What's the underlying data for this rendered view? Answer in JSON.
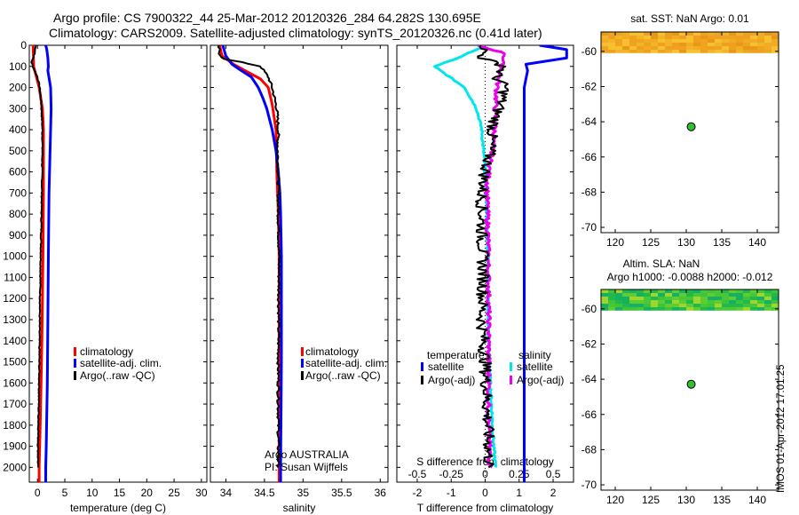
{
  "header": {
    "title_line1": "Argo profile: CS 7900322_44 25-Mar-2012 20120326_284 64.282S 130.695E",
    "title_line2": "Climatology: CARS2009. Satellite-adjusted climatology: synTS_20120326.nc (0.41d later)"
  },
  "colors": {
    "climatology": "#ff0000",
    "satellite": "#0000ff",
    "argo": "#000000",
    "satellite_s": "#00e6ee",
    "argo_s": "#ee00ee",
    "marker": "#2ec22e"
  },
  "chart_data": [
    {
      "id": "temperature",
      "type": "line",
      "xlabel": "temperature (deg C)",
      "xlim": [
        -1.5,
        31
      ],
      "xticks": [
        0,
        5,
        10,
        15,
        20,
        25,
        30
      ],
      "ylim": [
        2070,
        0
      ],
      "yticks": [
        0,
        100,
        200,
        300,
        400,
        500,
        600,
        700,
        800,
        900,
        1000,
        1100,
        1200,
        1300,
        1400,
        1500,
        1600,
        1700,
        1800,
        1900,
        2000
      ],
      "legend": [
        "climatology",
        "satellite-adj. clim.",
        "Argo(..raw -QC)"
      ],
      "series": [
        {
          "name": "climatology",
          "color": "#ff0000",
          "points": [
            [
              -0.8,
              0
            ],
            [
              -0.7,
              100
            ],
            [
              0.3,
              200
            ],
            [
              0.9,
              300
            ],
            [
              1.1,
              400
            ],
            [
              1.1,
              500
            ],
            [
              1.1,
              700
            ],
            [
              1.0,
              1000
            ],
            [
              0.8,
              1400
            ],
            [
              0.5,
              1800
            ],
            [
              0.3,
              2000
            ],
            [
              0.3,
              2070
            ]
          ]
        },
        {
          "name": "satellite-adj. clim.",
          "color": "#0000ff",
          "points": [
            [
              1.5,
              0
            ],
            [
              1.7,
              20
            ],
            [
              1.9,
              60
            ],
            [
              2.0,
              100
            ],
            [
              1.9,
              120
            ],
            [
              2.4,
              200
            ],
            [
              2.5,
              300
            ],
            [
              2.3,
              500
            ],
            [
              2.1,
              700
            ],
            [
              2.0,
              1000
            ],
            [
              1.9,
              1300
            ],
            [
              1.8,
              1600
            ],
            [
              1.6,
              1900
            ],
            [
              1.5,
              2000
            ],
            [
              1.5,
              2070
            ]
          ]
        },
        {
          "name": "Argo(..raw -QC)",
          "color": "#000000",
          "points": [
            [
              -0.3,
              0
            ],
            [
              -0.5,
              40
            ],
            [
              -1.1,
              80
            ],
            [
              -0.7,
              110
            ],
            [
              0,
              150
            ],
            [
              0.4,
              200
            ],
            [
              0.7,
              280
            ],
            [
              0.9,
              400
            ],
            [
              0.9,
              500
            ],
            [
              0.8,
              700
            ],
            [
              0.6,
              1000
            ],
            [
              0.4,
              1300
            ],
            [
              0.3,
              1600
            ],
            [
              0.1,
              1900
            ],
            [
              0.1,
              2000
            ]
          ]
        }
      ]
    },
    {
      "id": "salinity",
      "type": "line",
      "xlabel": "salinity",
      "xlim": [
        33.8,
        36.1
      ],
      "xticks": [
        34,
        34.5,
        35,
        35.5,
        36
      ],
      "ylim": [
        2070,
        0
      ],
      "legend": [
        "climatology",
        "satellite-adj. clim.",
        "Argo(..raw -QC)"
      ],
      "float_text": [
        "Argo AUSTRALIA",
        "PI: Susan Wijffels"
      ],
      "series": [
        {
          "name": "climatology",
          "color": "#ff0000",
          "points": [
            [
              33.92,
              0
            ],
            [
              33.95,
              50
            ],
            [
              34.1,
              90
            ],
            [
              34.3,
              130
            ],
            [
              34.45,
              160
            ],
            [
              34.55,
              200
            ],
            [
              34.6,
              280
            ],
            [
              34.65,
              400
            ],
            [
              34.66,
              600
            ],
            [
              34.68,
              800
            ],
            [
              34.69,
              1000
            ],
            [
              34.69,
              1500
            ],
            [
              34.69,
              2000
            ],
            [
              34.69,
              2070
            ]
          ]
        },
        {
          "name": "satellite-adj. clim.",
          "color": "#0000ff",
          "points": [
            [
              33.96,
              0
            ],
            [
              34.0,
              50
            ],
            [
              34.08,
              90
            ],
            [
              34.2,
              120
            ],
            [
              34.33,
              150
            ],
            [
              34.42,
              200
            ],
            [
              34.48,
              250
            ],
            [
              34.53,
              300
            ],
            [
              34.6,
              400
            ],
            [
              34.65,
              500
            ],
            [
              34.68,
              600
            ],
            [
              34.7,
              700
            ],
            [
              34.71,
              800
            ],
            [
              34.72,
              1000
            ],
            [
              34.72,
              1500
            ],
            [
              34.71,
              2000
            ],
            [
              34.71,
              2070
            ]
          ]
        },
        {
          "name": "Argo(..raw -QC)",
          "color": "#000000",
          "points": [
            [
              33.9,
              0
            ],
            [
              33.92,
              40
            ],
            [
              33.97,
              65
            ],
            [
              34.2,
              80
            ],
            [
              34.45,
              100
            ],
            [
              34.55,
              150
            ],
            [
              34.6,
              200
            ],
            [
              34.66,
              300
            ],
            [
              34.68,
              400
            ],
            [
              34.67,
              500
            ],
            [
              34.68,
              600
            ],
            [
              34.68,
              800
            ],
            [
              34.69,
              1000
            ],
            [
              34.68,
              1500
            ],
            [
              34.68,
              2000
            ]
          ]
        }
      ]
    },
    {
      "id": "difference",
      "type": "line",
      "xlabel": "T difference from climatology",
      "xlabel_top": "S difference from climatology",
      "xlim": [
        -2.6,
        2.6
      ],
      "xticks": [
        -2,
        -1,
        0,
        1,
        2
      ],
      "xticks_top": [
        "-0.5",
        "-0.25",
        "0",
        "0.25",
        "0.5"
      ],
      "ylim": [
        2070,
        0
      ],
      "legend_titles": [
        "temperature",
        "salinity"
      ],
      "legend": [
        "satellite",
        "Argo(-adj)",
        "satellite",
        "Argo(-adj)"
      ],
      "series": [
        {
          "name": "satellite (temperature)",
          "color": "#0000ff",
          "points": [
            [
              1.6,
              0
            ],
            [
              2.4,
              20
            ],
            [
              2.4,
              60
            ],
            [
              1.2,
              90
            ],
            [
              1.25,
              120
            ],
            [
              1.15,
              200
            ],
            [
              1.15,
              400
            ],
            [
              1.15,
              700
            ],
            [
              1.15,
              1000
            ],
            [
              1.15,
              1500
            ],
            [
              1.15,
              2000
            ],
            [
              1.15,
              2070
            ]
          ]
        },
        {
          "name": "Argo(-adj) (temperature)",
          "color": "#000000",
          "points": [
            [
              0,
              0
            ],
            [
              -0.1,
              60
            ],
            [
              0.6,
              100
            ],
            [
              0.3,
              150
            ],
            [
              0.6,
              200
            ],
            [
              0.4,
              300
            ],
            [
              0.2,
              400
            ],
            [
              0.15,
              500
            ],
            [
              0,
              600
            ],
            [
              -0.1,
              700
            ],
            [
              -0.1,
              900
            ],
            [
              -0.05,
              1100
            ],
            [
              -0.1,
              1300
            ],
            [
              0,
              1500
            ],
            [
              0.05,
              1700
            ],
            [
              0.1,
              1900
            ],
            [
              0.1,
              2000
            ]
          ]
        },
        {
          "name": "satellite (salinity)",
          "color": "#00e6ee",
          "points": [
            [
              0,
              0
            ],
            [
              -0.8,
              60
            ],
            [
              -1.5,
              100
            ],
            [
              -1.05,
              150
            ],
            [
              -0.6,
              200
            ],
            [
              -0.25,
              300
            ],
            [
              -0.1,
              400
            ],
            [
              0,
              600
            ],
            [
              0.05,
              800
            ],
            [
              0.08,
              1000
            ],
            [
              0.08,
              1300
            ],
            [
              0.15,
              1600
            ],
            [
              0.25,
              1900
            ],
            [
              0.3,
              2000
            ]
          ]
        },
        {
          "name": "Argo(-adj) (salinity)",
          "color": "#ee00ee",
          "points": [
            [
              -0.2,
              0
            ],
            [
              0.6,
              40
            ],
            [
              0.5,
              80
            ],
            [
              0.45,
              120
            ],
            [
              0.35,
              200
            ],
            [
              0.3,
              300
            ],
            [
              0.28,
              400
            ],
            [
              0.2,
              500
            ],
            [
              0.1,
              600
            ],
            [
              0.05,
              700
            ],
            [
              0.08,
              900
            ],
            [
              0.1,
              1200
            ],
            [
              0.1,
              1500
            ],
            [
              0.1,
              1800
            ],
            [
              0.15,
              2000
            ]
          ]
        }
      ]
    },
    {
      "id": "sst_map",
      "type": "heatmap",
      "title": "sat. SST: NaN Argo: 0.01",
      "xlim": [
        118,
        143
      ],
      "xticks": [
        120,
        125,
        130,
        135,
        140
      ],
      "ylim": [
        -70.3,
        -58.9
      ],
      "yticks": [
        -60,
        -62,
        -64,
        -66,
        -68,
        -70
      ],
      "data_extent_lat": [
        -60.1,
        -58.9
      ],
      "point": {
        "lon": 130.695,
        "lat": -64.282
      }
    },
    {
      "id": "sla_map",
      "type": "heatmap",
      "title": "Altim. SLA: NaN",
      "subtitle": "Argo h1000: -0.0088 h2000: -0.012",
      "xlim": [
        118,
        143
      ],
      "xticks": [
        120,
        125,
        130,
        135,
        140
      ],
      "ylim": [
        -70.3,
        -58.9
      ],
      "yticks": [
        -60,
        -62,
        -64,
        -66,
        -68,
        -70
      ],
      "data_extent_lat": [
        -60.1,
        -58.9
      ],
      "point": {
        "lon": 130.695,
        "lat": -64.282
      }
    }
  ],
  "footer": {
    "stamp": "IMOS 01-Apr-2012 17:01:25"
  }
}
